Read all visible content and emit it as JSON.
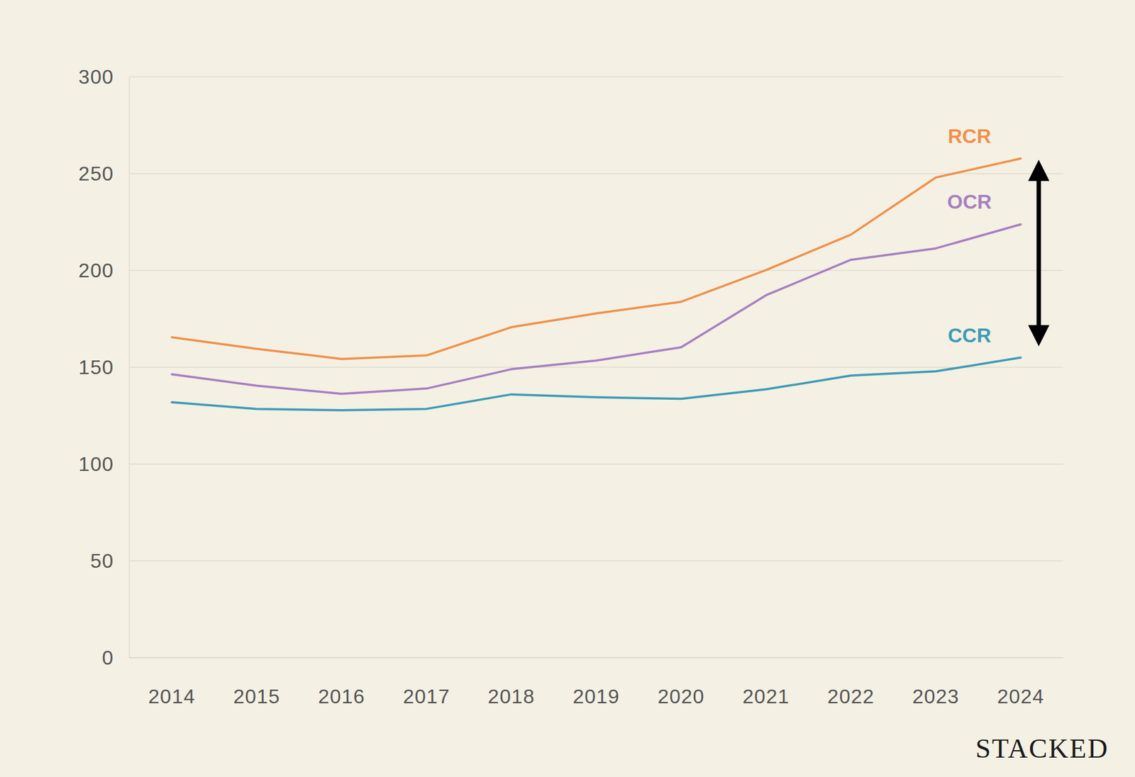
{
  "chart_data": {
    "type": "line",
    "categories": [
      "2014",
      "2015",
      "2016",
      "2017",
      "2018",
      "2019",
      "2020",
      "2021",
      "2022",
      "2023",
      "2024"
    ],
    "series": [
      {
        "name": "RCR",
        "color": "#f0914a",
        "values": [
          165.5,
          159.5,
          154.3,
          156.1,
          170.7,
          177.8,
          183.8,
          200.2,
          218.5,
          248,
          257.8
        ]
      },
      {
        "name": "OCR",
        "color": "#a77fc1",
        "values": [
          146.4,
          140.5,
          136.3,
          139,
          149,
          153.5,
          160.3,
          187.2,
          205.5,
          211.4,
          223.8
        ]
      },
      {
        "name": "CCR",
        "color": "#3d9bb5",
        "values": [
          131.9,
          128.5,
          127.8,
          128.5,
          136,
          134.5,
          133.7,
          138.6,
          145.7,
          147.9,
          155
        ]
      }
    ],
    "ylim": [
      0,
      300
    ],
    "yticks": [
      0,
      50,
      100,
      150,
      200,
      250,
      300
    ],
    "grid": true,
    "annotations": [
      "STACKED"
    ]
  }
}
